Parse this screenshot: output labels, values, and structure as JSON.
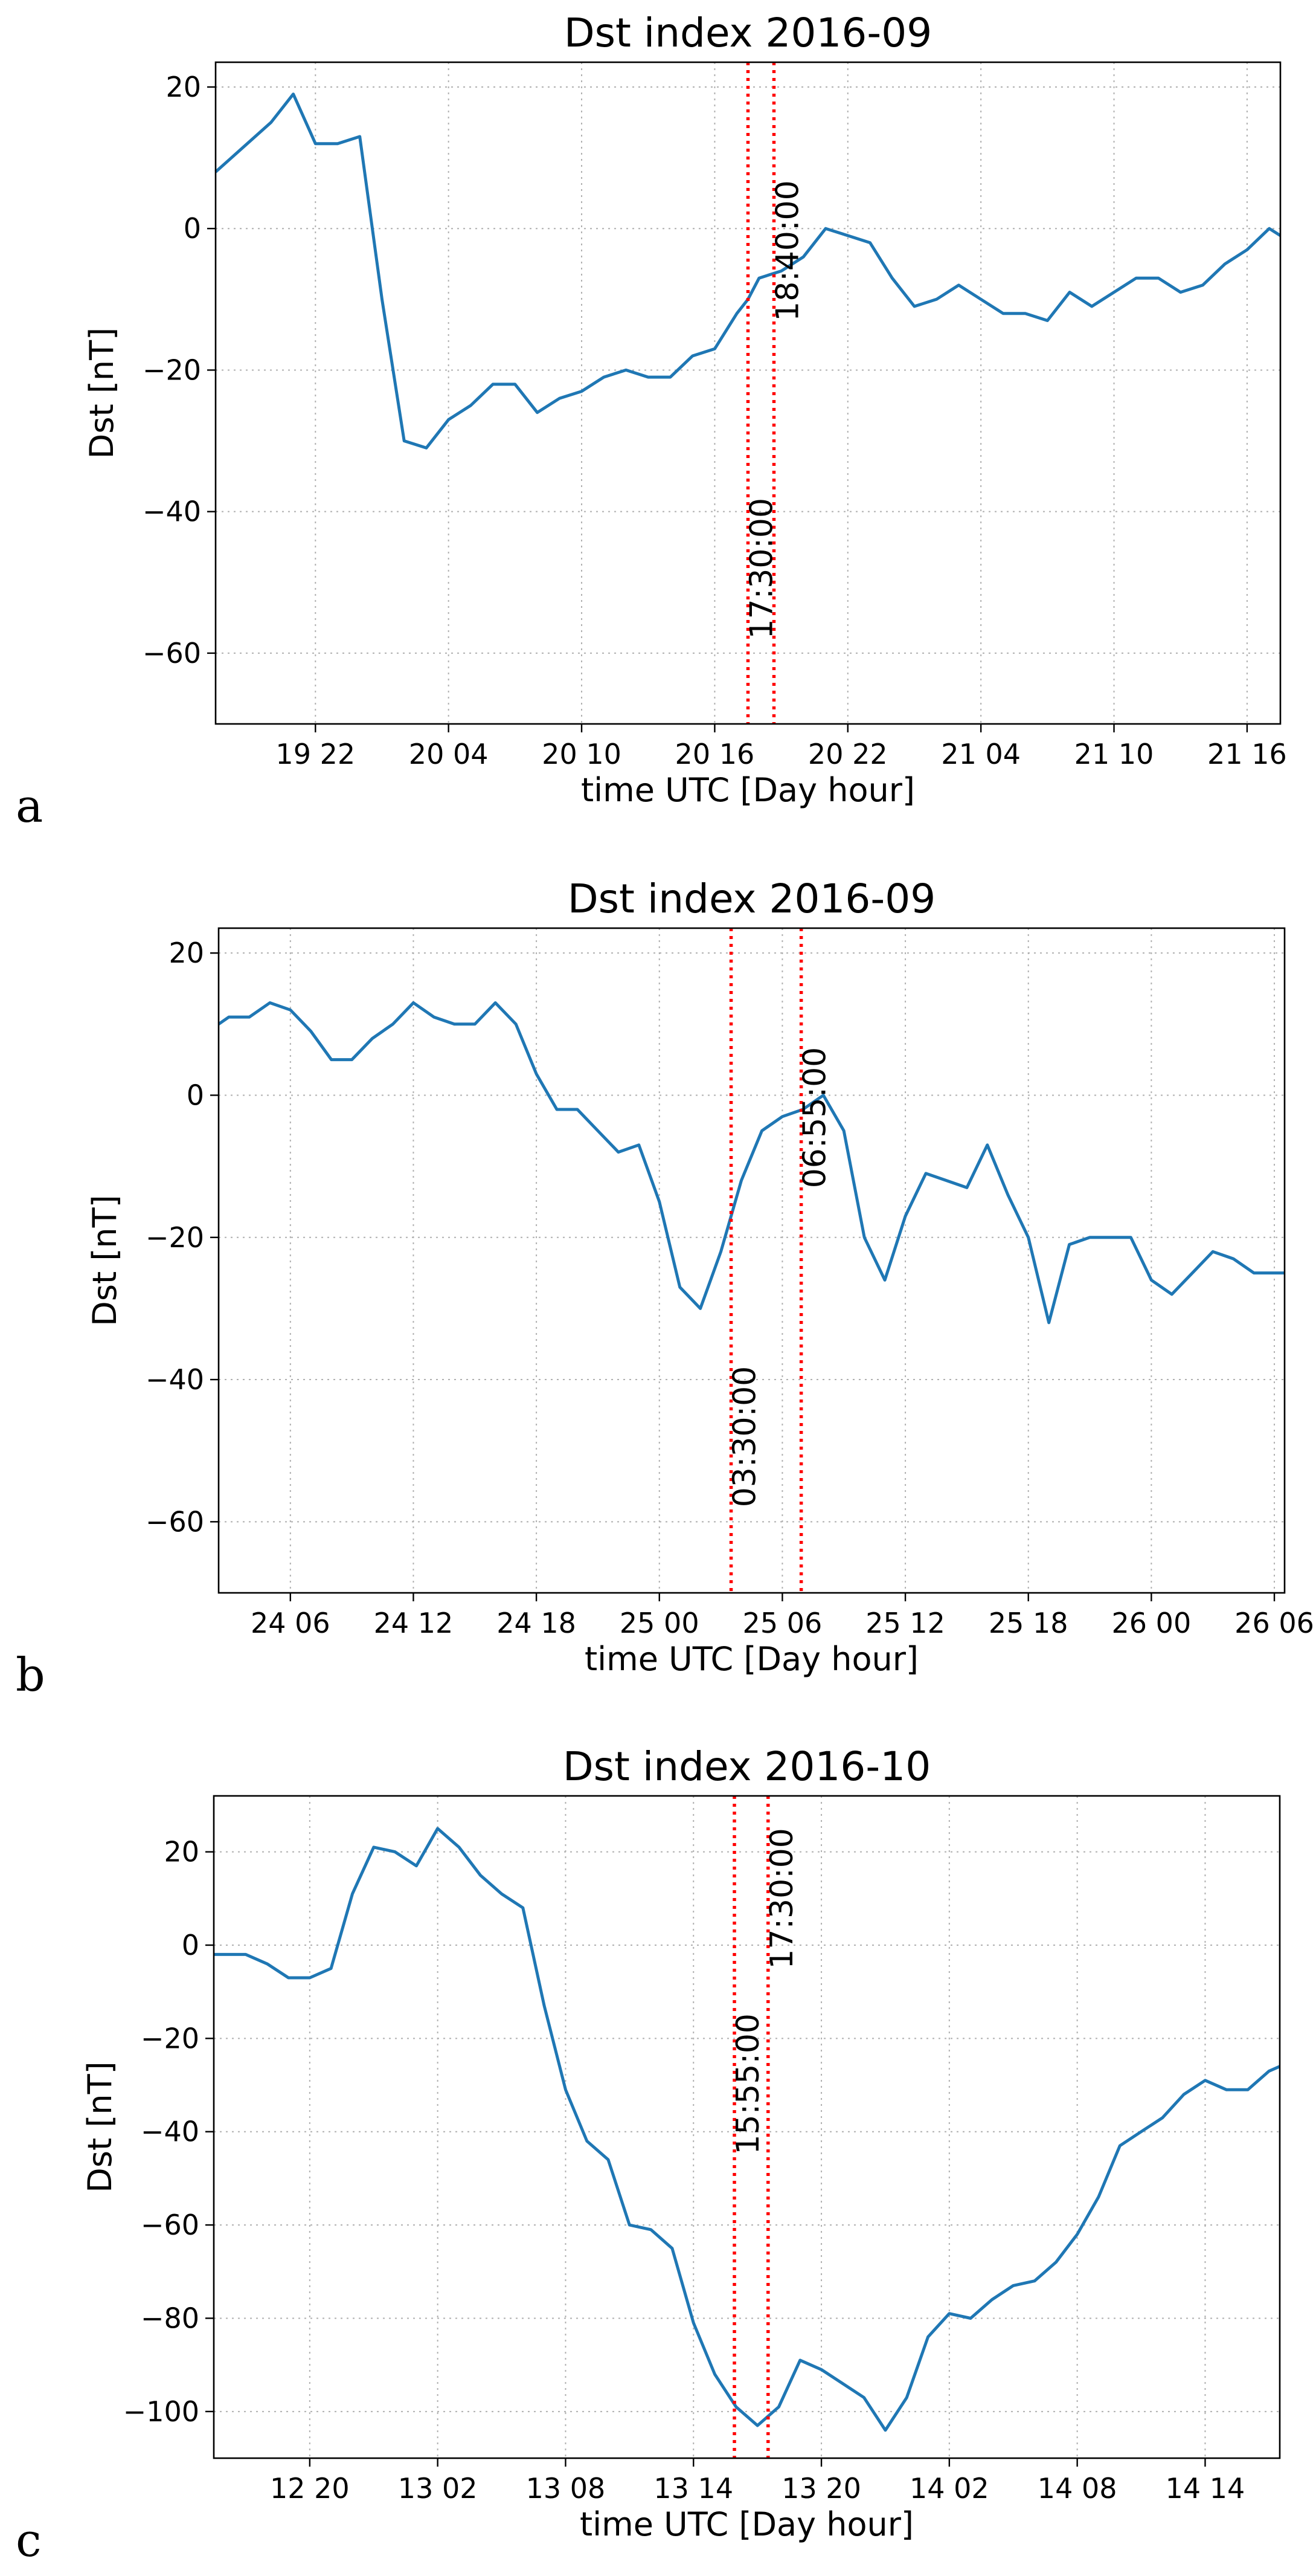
{
  "chart_data": [
    {
      "panel": "a",
      "type": "line",
      "title": "Dst index 2016-09",
      "xlabel": "time UTC [Day hour]",
      "ylabel": "Dst [nT]",
      "xlim": [
        -4.5,
        43.5
      ],
      "ylim": [
        -70,
        23.5
      ],
      "grid": true,
      "xticks": [
        {
          "x": 0,
          "label": "19 22"
        },
        {
          "x": 6,
          "label": "20 04"
        },
        {
          "x": 12,
          "label": "20 10"
        },
        {
          "x": 18,
          "label": "20 16"
        },
        {
          "x": 24,
          "label": "20 22"
        },
        {
          "x": 30,
          "label": "21 04"
        },
        {
          "x": 36,
          "label": "21 10"
        },
        {
          "x": 42,
          "label": "21 16"
        }
      ],
      "yticks": [
        20,
        0,
        -20,
        -40,
        -60
      ],
      "series": [
        {
          "color": "#1f77b4",
          "x": [
            -4.5,
            -2,
            -1,
            0,
            1,
            2,
            3,
            4,
            5,
            6,
            7,
            8,
            9,
            10,
            11,
            12,
            13,
            14,
            15,
            16,
            17,
            18,
            19,
            19.5,
            20,
            21,
            22,
            23,
            24,
            25,
            26,
            27,
            28,
            29,
            30,
            31,
            32,
            33,
            34,
            35,
            36,
            37,
            38,
            39,
            40,
            41,
            42,
            43,
            43.5
          ],
          "y": [
            8,
            15,
            19,
            12,
            12,
            13,
            -10,
            -30,
            -31,
            -27,
            -25,
            -22,
            -22,
            -26,
            -24,
            -23,
            -21,
            -20,
            -21,
            -21,
            -18,
            -17,
            -12,
            -10,
            -7,
            -6,
            -4,
            0,
            -1,
            -2,
            -7,
            -11,
            -10,
            -8,
            -10,
            -12,
            -12,
            -13,
            -9,
            -11,
            -9,
            -7,
            -7,
            -9,
            -8,
            -5,
            -3,
            0,
            -1
          ]
        }
      ],
      "markers": [
        {
          "x": 19.5,
          "label": "17:30:00",
          "color": "#ff0000"
        },
        {
          "x": 20.67,
          "label": "18:40:00",
          "color": "#ff0000"
        }
      ]
    },
    {
      "panel": "b",
      "type": "line",
      "title": "Dst index 2016-09",
      "xlabel": "time UTC [Day hour]",
      "ylabel": "Dst [nT]",
      "xlim": [
        2.5,
        54.5
      ],
      "ylim": [
        -70,
        23.5
      ],
      "grid": true,
      "xticks": [
        {
          "x": 6,
          "label": "24 06"
        },
        {
          "x": 12,
          "label": "24 12"
        },
        {
          "x": 18,
          "label": "24 18"
        },
        {
          "x": 24,
          "label": "25 00"
        },
        {
          "x": 30,
          "label": "25 06"
        },
        {
          "x": 36,
          "label": "25 12"
        },
        {
          "x": 42,
          "label": "25 18"
        },
        {
          "x": 48,
          "label": "26 00"
        },
        {
          "x": 54,
          "label": "26 06"
        }
      ],
      "yticks": [
        20,
        0,
        -20,
        -40,
        -60
      ],
      "series": [
        {
          "color": "#1f77b4",
          "x": [
            2.5,
            3,
            4,
            5,
            6,
            7,
            8,
            9,
            10,
            11,
            12,
            13,
            14,
            15,
            16,
            17,
            18,
            19,
            20,
            21,
            22,
            23,
            24,
            25,
            26,
            27,
            28,
            29,
            30,
            31,
            32,
            33,
            34,
            35,
            36,
            37,
            38,
            39,
            40,
            41,
            42,
            43,
            44,
            45,
            46,
            47,
            48,
            49,
            50,
            51,
            52,
            53,
            54,
            54.5
          ],
          "y": [
            10,
            11,
            11,
            13,
            12,
            9,
            5,
            5,
            8,
            10,
            13,
            11,
            10,
            10,
            13,
            10,
            3,
            -2,
            -2,
            -5,
            -8,
            -7,
            -15,
            -27,
            -30,
            -22,
            -12,
            -5,
            -3,
            -2,
            0,
            -5,
            -20,
            -26,
            -17,
            -11,
            -12,
            -13,
            -7,
            -14,
            -20,
            -32,
            -21,
            -20,
            -20,
            -20,
            -26,
            -28,
            -25,
            -22,
            -23,
            -25,
            -25,
            -25
          ]
        }
      ],
      "markers": [
        {
          "x": 27.5,
          "label": "03:30:00",
          "color": "#ff0000"
        },
        {
          "x": 30.92,
          "label": "06:55:00",
          "color": "#ff0000"
        }
      ]
    },
    {
      "panel": "c",
      "type": "line",
      "title": "Dst index 2016-10",
      "xlabel": "time UTC [Day hour]",
      "ylabel": "Dst [nT]",
      "xlim": [
        -4.5,
        45.5
      ],
      "ylim": [
        -110,
        32
      ],
      "grid": true,
      "xticks": [
        {
          "x": 0,
          "label": "12 20"
        },
        {
          "x": 6,
          "label": "13 02"
        },
        {
          "x": 12,
          "label": "13 08"
        },
        {
          "x": 18,
          "label": "13 14"
        },
        {
          "x": 24,
          "label": "13 20"
        },
        {
          "x": 30,
          "label": "14 02"
        },
        {
          "x": 36,
          "label": "14 08"
        },
        {
          "x": 42,
          "label": "14 14"
        }
      ],
      "yticks": [
        20,
        0,
        -20,
        -40,
        -60,
        -80,
        -100
      ],
      "series": [
        {
          "color": "#1f77b4",
          "x": [
            -4.5,
            -3,
            -2,
            -1,
            0,
            1,
            2,
            3,
            4,
            5,
            6,
            7,
            8,
            9,
            10,
            11,
            12,
            13,
            14,
            15,
            16,
            17,
            18,
            19,
            20,
            21,
            22,
            23,
            24,
            25,
            26,
            27,
            28,
            29,
            30,
            31,
            32,
            33,
            34,
            35,
            36,
            37,
            38,
            39,
            40,
            41,
            42,
            43,
            44,
            45,
            45.5
          ],
          "y": [
            -2,
            -2,
            -4,
            -7,
            -7,
            -5,
            11,
            21,
            20,
            17,
            25,
            21,
            15,
            11,
            8,
            -13,
            -31,
            -42,
            -46,
            -60,
            -61,
            -65,
            -81,
            -92,
            -99,
            -103,
            -99,
            -89,
            -91,
            -94,
            -97,
            -104,
            -97,
            -84,
            -79,
            -80,
            -76,
            -73,
            -72,
            -68,
            -62,
            -54,
            -43,
            -40,
            -37,
            -32,
            -29,
            -31,
            -31,
            -27,
            -26
          ]
        }
      ],
      "markers": [
        {
          "x": 19.92,
          "label": "15:55:00",
          "color": "#ff0000"
        },
        {
          "x": 21.5,
          "label": "17:30:00",
          "color": "#ff0000"
        }
      ]
    }
  ]
}
